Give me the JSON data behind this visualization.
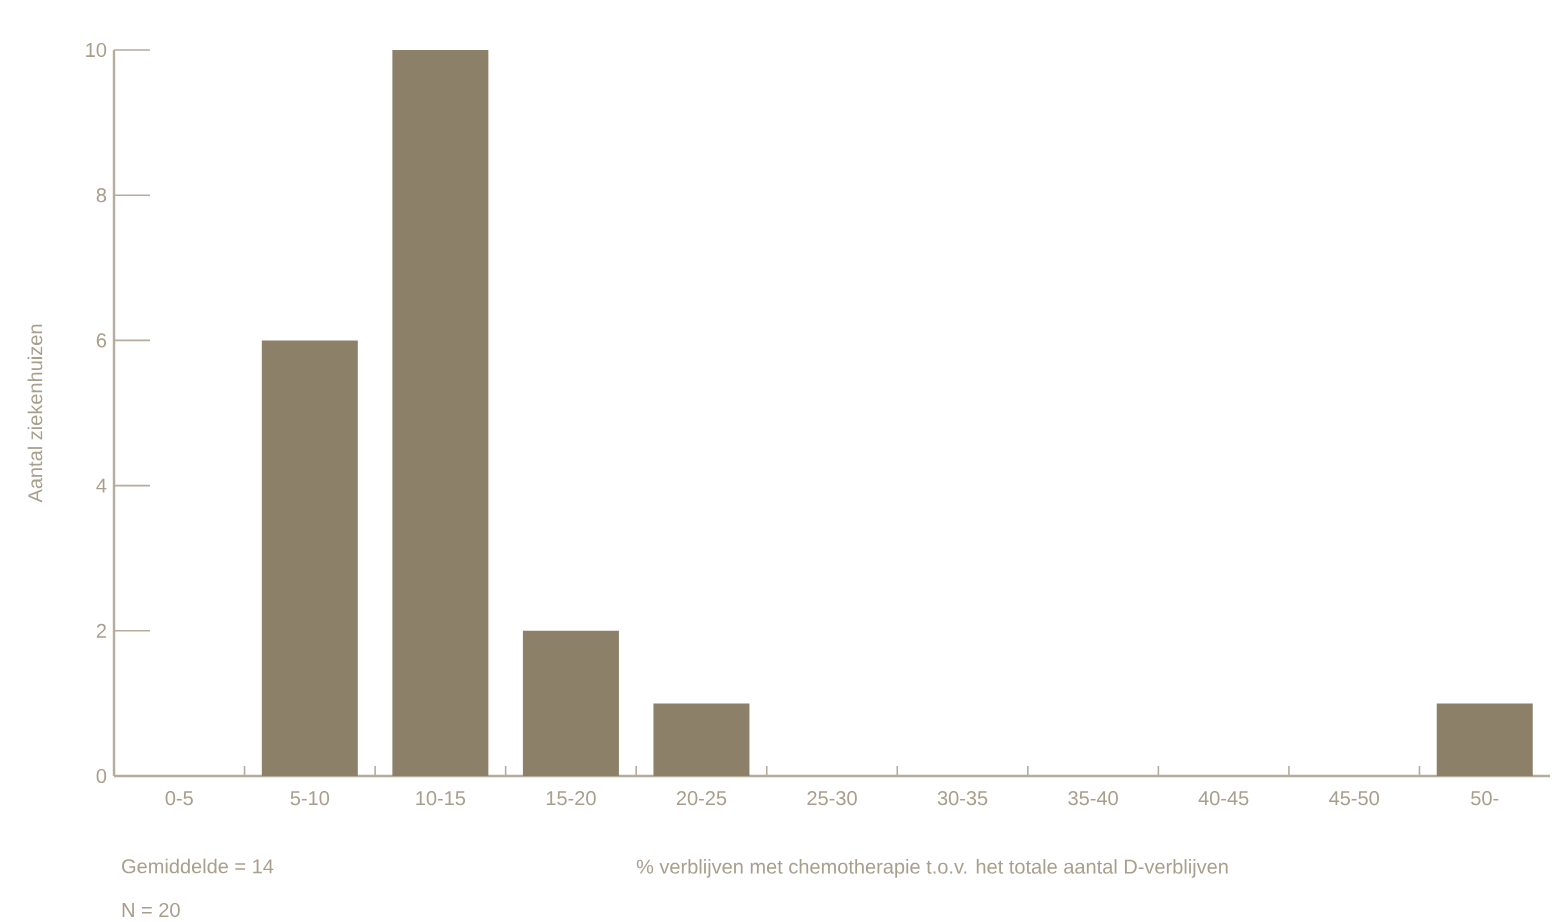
{
  "chart_data": {
    "type": "bar",
    "xlabel": "% verblijven met chemotherapie t.o.v. het totale aantal D-verblijven",
    "ylabel": "Aantal ziekenhuizen",
    "categories": [
      "0-5",
      "5-10",
      "10-15",
      "15-20",
      "20-25",
      "25-30",
      "30-35",
      "35-40",
      "40-45",
      "45-50",
      "50-"
    ],
    "values": [
      0,
      6,
      10,
      2,
      1,
      0,
      0,
      0,
      0,
      0,
      1
    ],
    "color": "#8c8069",
    "ylim": [
      0,
      10
    ],
    "yticks": [
      0,
      2,
      4,
      6,
      8,
      10
    ],
    "annotations": [
      "Gemiddelde = 14",
      "N = 20"
    ]
  }
}
